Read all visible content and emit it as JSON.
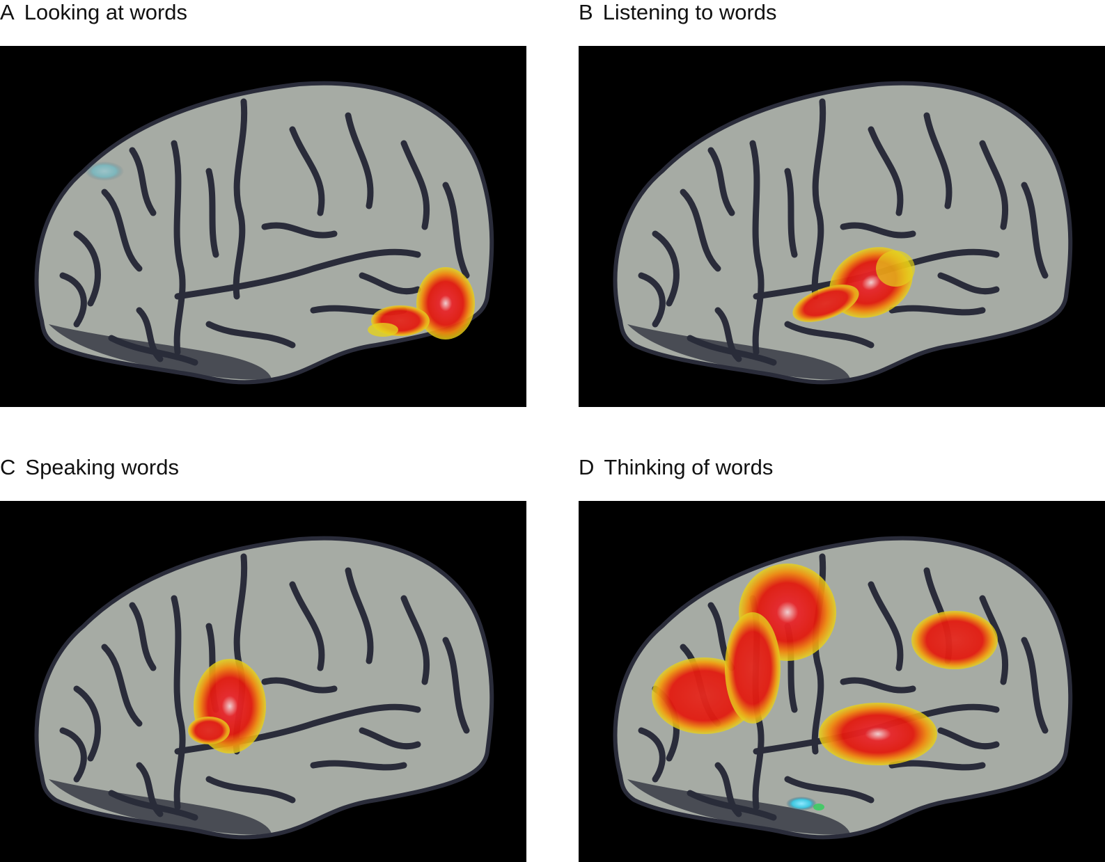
{
  "panels": [
    {
      "letter": "A",
      "title": "Looking at words"
    },
    {
      "letter": "B",
      "title": "Listening to words"
    },
    {
      "letter": "C",
      "title": "Speaking words"
    },
    {
      "letter": "D",
      "title": "Thinking of words"
    }
  ],
  "colors": {
    "background": "#000000",
    "cortex": "#a6aba4",
    "sulci": "#2a2c3a",
    "activation_low": "#e8d417",
    "activation_mid": "#f08a10",
    "activation_high": "#e31b10",
    "activation_peak": "#f2c6c8",
    "negative": "#3fc7e0"
  }
}
